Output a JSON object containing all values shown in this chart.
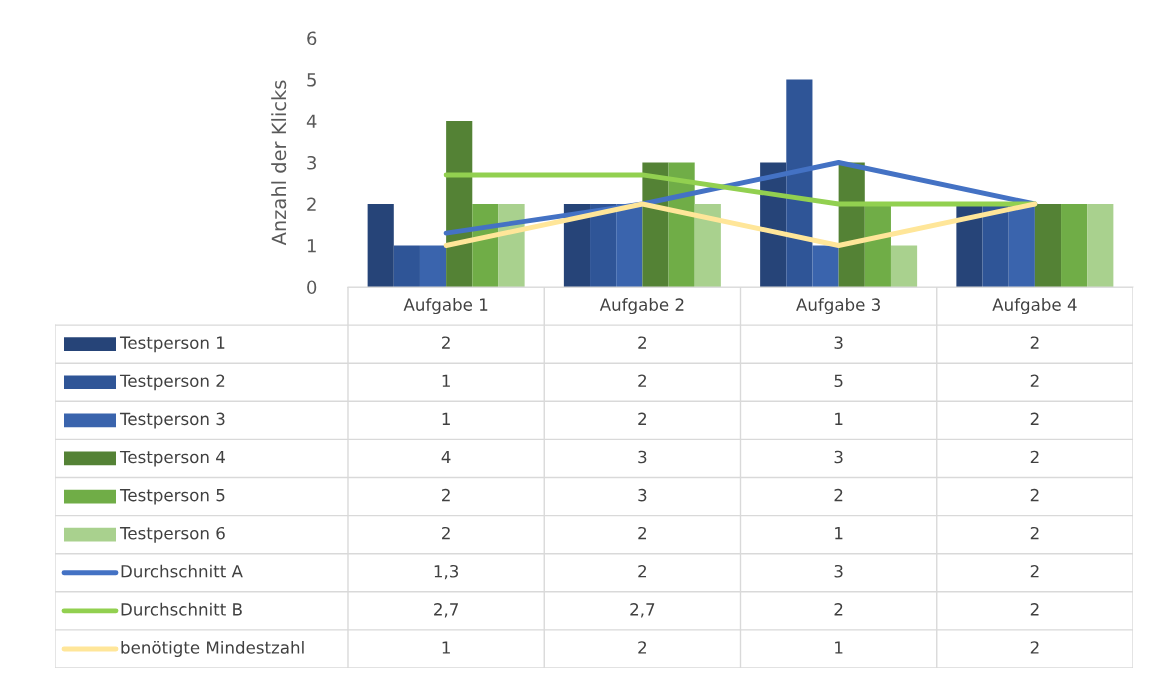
{
  "chart_data": {
    "type": "bar",
    "ylabel": "Anzahl der Klicks",
    "categories": [
      "Aufgabe 1",
      "Aufgabe 2",
      "Aufgabe 3",
      "Aufgabe 4"
    ],
    "series": [
      {
        "name": "Testperson 1",
        "color": "#264478",
        "values": [
          2,
          2,
          3,
          2
        ]
      },
      {
        "name": "Testperson 2",
        "color": "#2f5597",
        "values": [
          1,
          2,
          5,
          2
        ]
      },
      {
        "name": "Testperson 3",
        "color": "#3a64ad",
        "values": [
          1,
          2,
          1,
          2
        ]
      },
      {
        "name": "Testperson 4",
        "color": "#548235",
        "values": [
          4,
          3,
          3,
          2
        ]
      },
      {
        "name": "Testperson 5",
        "color": "#70ad47",
        "values": [
          2,
          3,
          2,
          2
        ]
      },
      {
        "name": "Testperson 6",
        "color": "#a9d18e",
        "values": [
          2,
          2,
          1,
          2
        ]
      },
      {
        "name": "Durchschnitt A",
        "type": "line",
        "color": "#4472c4",
        "values": [
          1.3,
          2,
          3,
          2
        ],
        "value_labels": [
          "1,3",
          "2",
          "3",
          "2"
        ]
      },
      {
        "name": "Durchschnitt B",
        "type": "line",
        "color": "#92d050",
        "values": [
          2.7,
          2.7,
          2,
          2
        ],
        "value_labels": [
          "2,7",
          "2,7",
          "2",
          "2"
        ]
      },
      {
        "name": "benötigte Mindestzahl",
        "type": "line",
        "color": "#ffe699",
        "values": [
          1,
          2,
          1,
          2
        ]
      }
    ],
    "ylim": [
      0,
      6
    ],
    "yticks": [
      0,
      1,
      2,
      3,
      4,
      5,
      6
    ],
    "grid": false,
    "legend": "bottom",
    "data_labels": true
  }
}
